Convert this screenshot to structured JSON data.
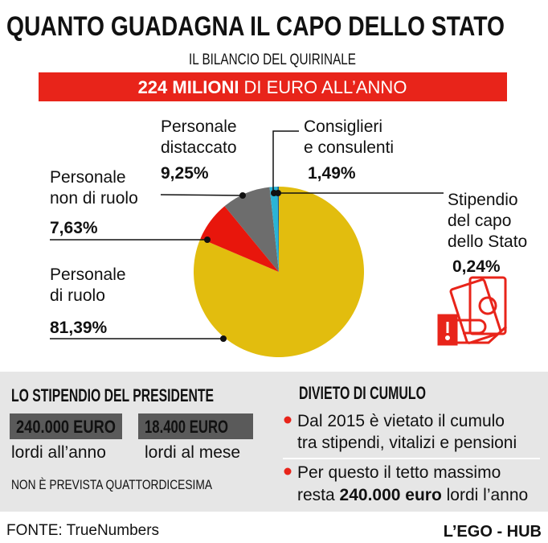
{
  "header": {
    "title": "QUANTO GUADAGNA IL CAPO DELLO STATO",
    "subtitle": "IL BILANCIO DEL QUIRINALE",
    "banner_bold": "224 MILIONI",
    "banner_rest": "DI EURO ALL’ANNO"
  },
  "chart_data": {
    "type": "pie",
    "categories": [
      "Personale\ndi ruolo",
      "Personale\nnon di ruolo",
      "Personale\ndistaccato",
      "Consiglieri\ne consulenti",
      "Stipendio\ndel capo\ndello Stato"
    ],
    "values": [
      81.39,
      7.63,
      9.25,
      1.49,
      0.24
    ],
    "value_labels": [
      "81,39%",
      "7,63%",
      "9,25%",
      "1,49%",
      "0,24%"
    ],
    "colors": [
      "#e2bd0e",
      "#e8160c",
      "#6d6d6d",
      "#2ab4d6",
      "#1b5e8a"
    ]
  },
  "left_panel": {
    "heading": "LO STIPENDIO DEL PRESIDENTE",
    "box1": "240.000 EURO",
    "box1_note": "lordi all’anno",
    "box2": "18.400 EURO",
    "box2_note": "lordi al mese",
    "note": "NON È PREVISTA QUATTORDICESIMA"
  },
  "right_panel": {
    "heading": "DIVIETO DI CUMULO",
    "bullet1": [
      "Dal 2015 è vietato il cumulo",
      "tra stipendi, vitalizi e pensioni"
    ],
    "bullet2": {
      "line1": "Per questo il tetto massimo",
      "line2": [
        "resta ",
        "240.000 euro",
        " lordi l’anno"
      ]
    }
  },
  "footer": {
    "source": "FONTE: TrueNumbers",
    "brand": "L’EGO - HUB"
  }
}
